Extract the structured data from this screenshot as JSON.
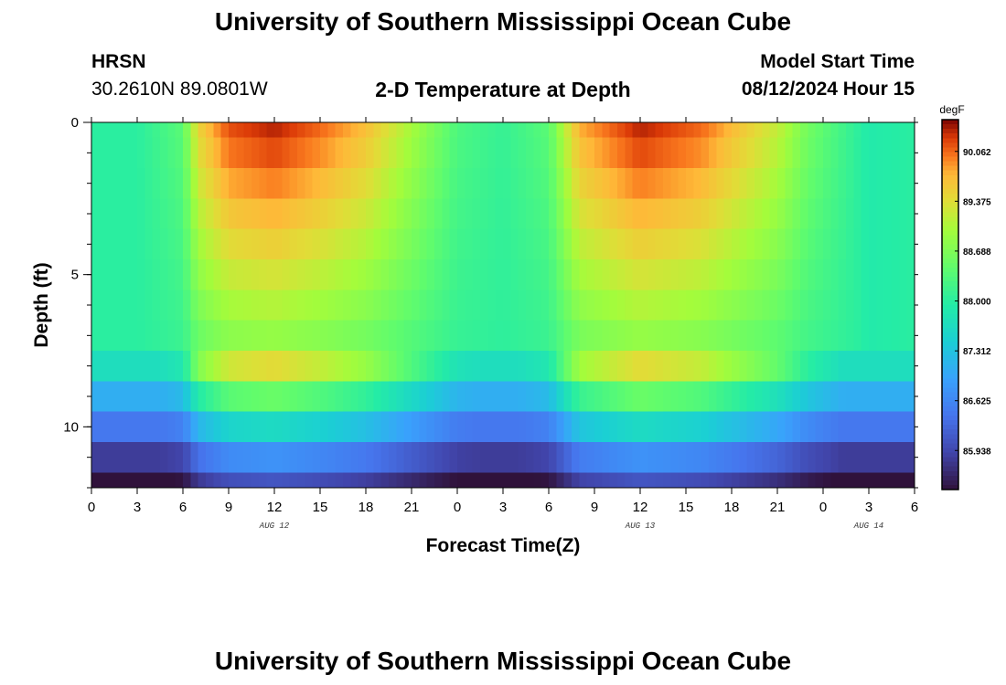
{
  "header": {
    "title": "University of Southern Mississippi Ocean Cube",
    "station": "HRSN",
    "coords": "30.2610N  89.0801W",
    "chart_title": "2-D Temperature at Depth",
    "model_start_label": "Model Start Time",
    "model_start_value": "08/12/2024 Hour 15"
  },
  "footer": {
    "title": "University of Southern Mississippi Ocean Cube"
  },
  "chart_data": {
    "type": "heatmap",
    "title": "2-D Temperature at Depth",
    "xlabel": "Forecast Time(Z)",
    "ylabel": "Depth (ft)",
    "x_tick_labels": [
      "0",
      "3",
      "6",
      "9",
      "12",
      "15",
      "18",
      "21",
      "0",
      "3",
      "6",
      "9",
      "12",
      "15",
      "18",
      "21",
      "0",
      "3",
      "6"
    ],
    "x_range_hours": [
      0,
      54
    ],
    "date_labels": [
      {
        "text": "AUG 12",
        "hour": 12
      },
      {
        "text": "AUG 13",
        "hour": 36
      },
      {
        "text": "AUG 14",
        "hour": 51
      }
    ],
    "y_tick_labels": [
      {
        "value": 0,
        "label": "0"
      },
      {
        "value": 5,
        "label": "5"
      },
      {
        "value": 10,
        "label": "10"
      }
    ],
    "y_range_ft": [
      0,
      12
    ],
    "depth_layers_ft": [
      0,
      0.5,
      1.5,
      2.5,
      3.5,
      4.5,
      5.5,
      6.5,
      7.5,
      8.5,
      9.5,
      10.5,
      11.5
    ],
    "colorbar": {
      "unit": "degF",
      "min": 85.4,
      "max": 90.5,
      "tick_values": [
        90.062,
        89.375,
        88.688,
        88.0,
        87.312,
        86.625,
        85.938
      ],
      "tick_labels": [
        "90.062",
        "89.375",
        "88.688",
        "88.000",
        "87.312",
        "86.625",
        "85.938"
      ]
    },
    "surface_temp_profile_degF": [
      {
        "hour": 0,
        "value": 88.0
      },
      {
        "hour": 3,
        "value": 88.0
      },
      {
        "hour": 6,
        "value": 88.4
      },
      {
        "hour": 7,
        "value": 89.5
      },
      {
        "hour": 9,
        "value": 90.2
      },
      {
        "hour": 12,
        "value": 90.4
      },
      {
        "hour": 15,
        "value": 90.1
      },
      {
        "hour": 18,
        "value": 89.7
      },
      {
        "hour": 21,
        "value": 89.0
      },
      {
        "hour": 24,
        "value": 88.3
      },
      {
        "hour": 27,
        "value": 88.1
      },
      {
        "hour": 30,
        "value": 88.4
      },
      {
        "hour": 32,
        "value": 89.8
      },
      {
        "hour": 36,
        "value": 90.4
      },
      {
        "hour": 40,
        "value": 90.1
      },
      {
        "hour": 45,
        "value": 89.2
      },
      {
        "hour": 47,
        "value": 88.6
      },
      {
        "hour": 51,
        "value": 87.9
      },
      {
        "hour": 54,
        "value": 88.0
      }
    ]
  }
}
